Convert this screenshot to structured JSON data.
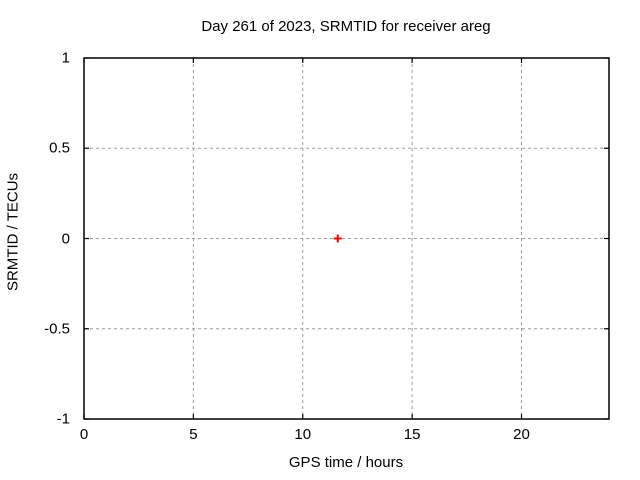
{
  "chart_data": {
    "type": "scatter",
    "title": "Day 261 of 2023, SRMTID for receiver areg",
    "xlabel": "GPS time / hours",
    "ylabel": "SRMTID / TECUs",
    "xlim": [
      0,
      24
    ],
    "ylim": [
      -1,
      1
    ],
    "xticks": [
      {
        "value": 0,
        "label": "0"
      },
      {
        "value": 5,
        "label": "5"
      },
      {
        "value": 10,
        "label": "10"
      },
      {
        "value": 15,
        "label": "15"
      },
      {
        "value": 20,
        "label": "20"
      }
    ],
    "yticks": [
      {
        "value": -1,
        "label": "-1"
      },
      {
        "value": -0.5,
        "label": "-0.5"
      },
      {
        "value": 0,
        "label": "0"
      },
      {
        "value": 0.5,
        "label": "0.5"
      },
      {
        "value": 1,
        "label": "1"
      }
    ],
    "grid": true,
    "grid_style": "dashed",
    "legend": "none",
    "series": [
      {
        "name": "SRMTID",
        "marker": "plus",
        "color": "#ff0000",
        "points": [
          {
            "x": 11.6,
            "y": 0
          }
        ]
      }
    ],
    "colors": {
      "axis": "#000000",
      "grid": "#9e9e9e",
      "text": "#000000",
      "background": "#ffffff",
      "marker": "#ff0000"
    }
  }
}
